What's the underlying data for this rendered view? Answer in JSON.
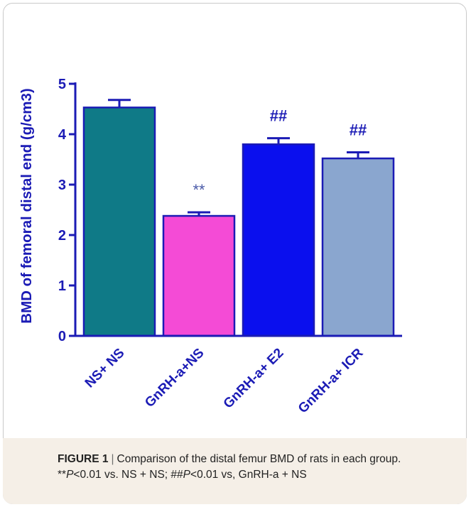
{
  "chart_data": {
    "type": "bar",
    "ylabel": "BMD of femoral  distal end (g/cm3)",
    "ylim": [
      0,
      5
    ],
    "yticks": [
      "0",
      "1",
      "2",
      "3",
      "4",
      "5"
    ],
    "categories": [
      "NS+ NS",
      "GnRH-a+NS",
      "GnRH-a+ E2",
      "GnRH-a+ ICR"
    ],
    "values": [
      4.53,
      2.38,
      3.8,
      3.52
    ],
    "errors": [
      0.15,
      0.07,
      0.12,
      0.12
    ],
    "colors": [
      "#0f7a87",
      "#f44bd6",
      "#0a0fee",
      "#8aa6cf"
    ],
    "annotations": [
      "",
      "**",
      "##",
      "##"
    ]
  },
  "caption": {
    "label": "FIGURE 1",
    "separator": "|",
    "text": "Comparison of the distal femur BMD of rats in each group.",
    "note_a_mark": "**",
    "note_a_p": "P",
    "note_a_rest": "<0.01 vs. NS + NS;",
    "note_b_mark": "##",
    "note_b_p": "P",
    "note_b_rest": "<0.01 vs, GnRH-a + NS"
  }
}
